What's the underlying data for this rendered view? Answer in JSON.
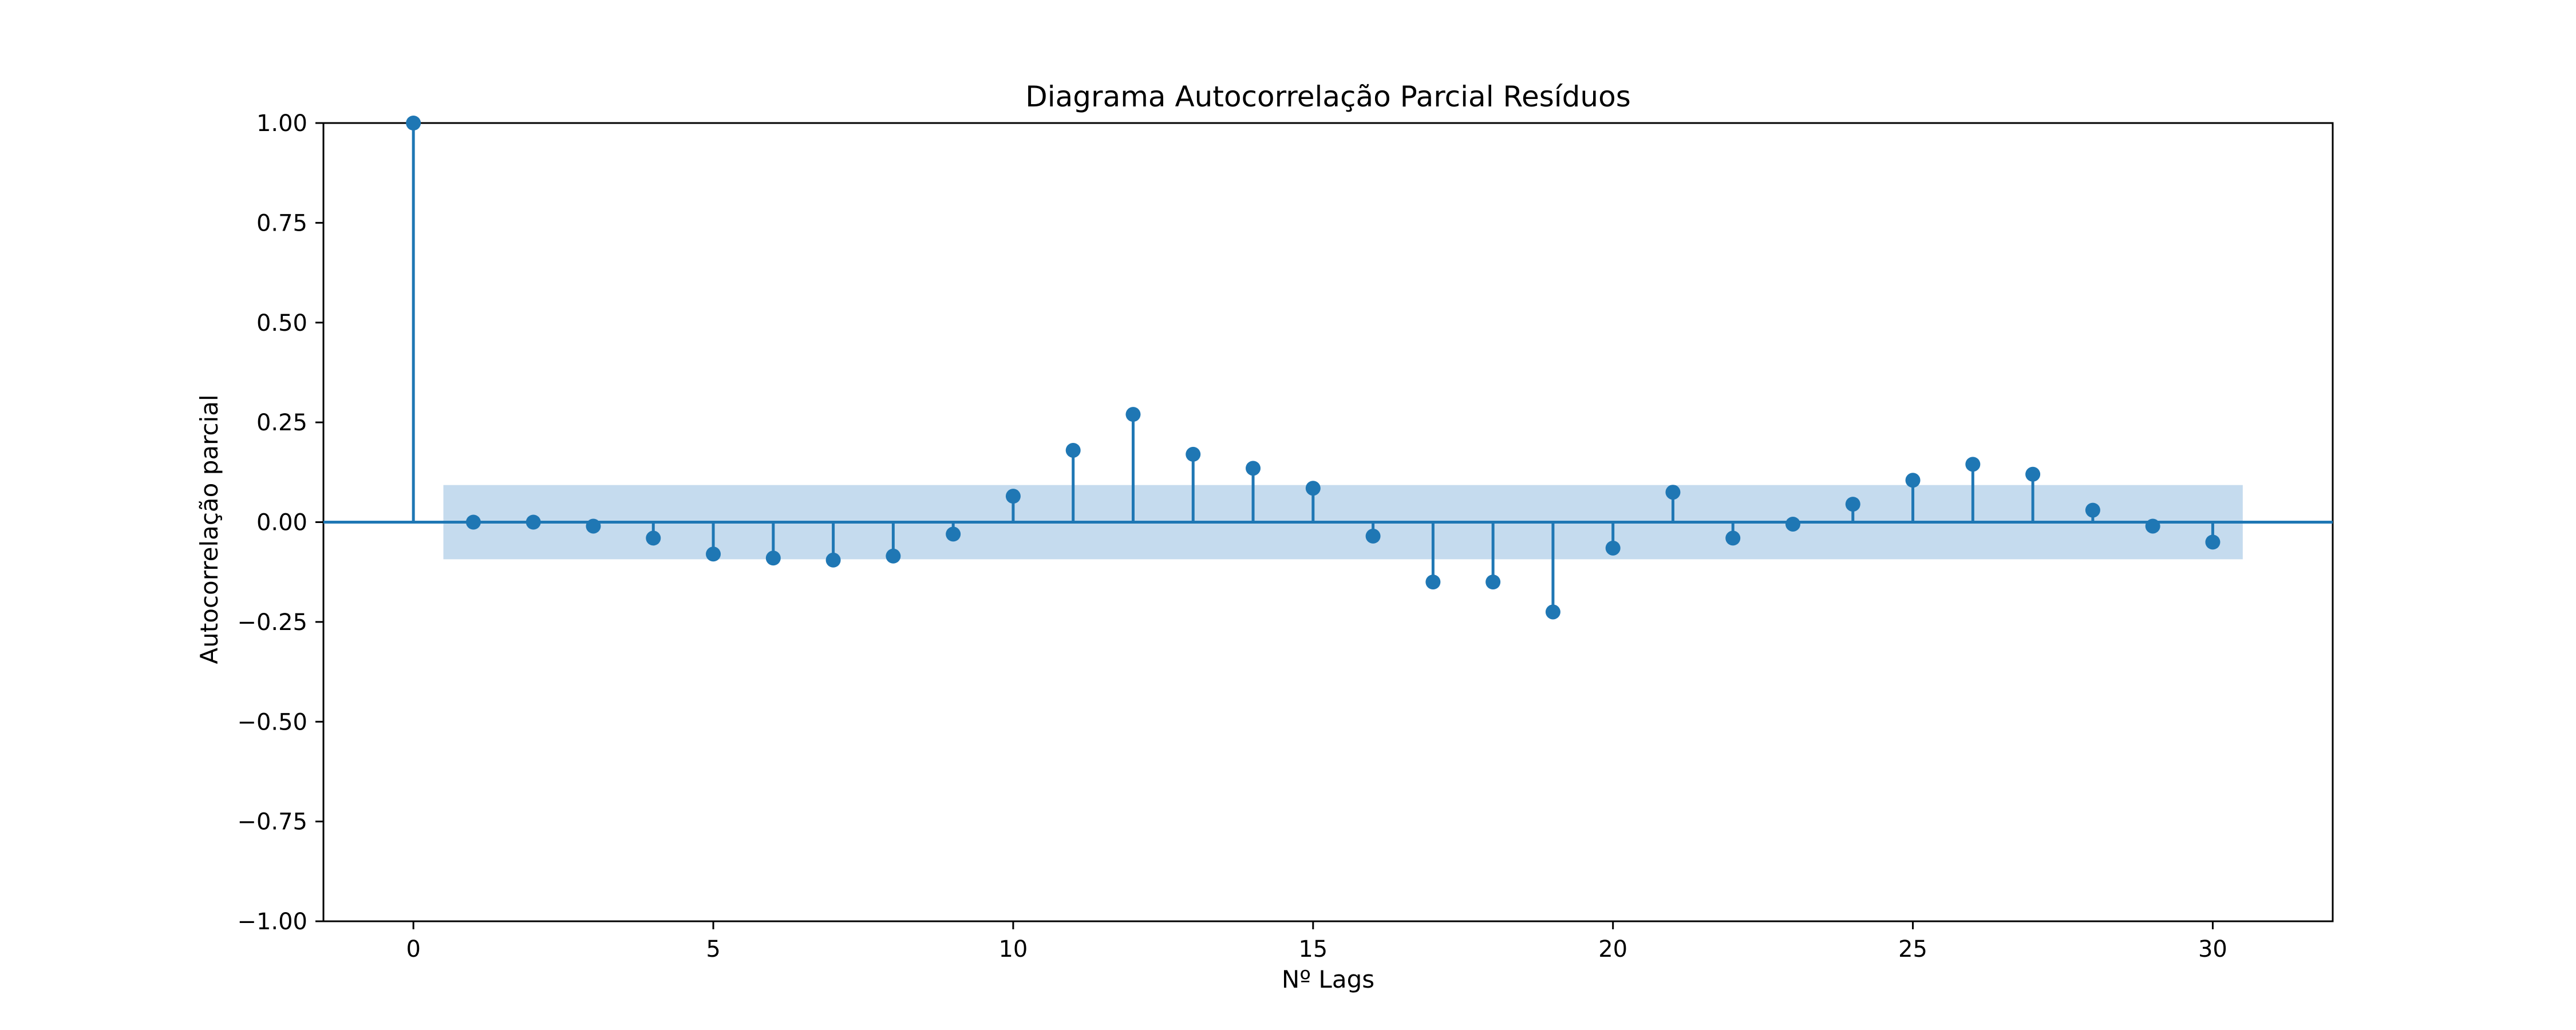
{
  "chart_data": {
    "type": "scatter",
    "subtype": "partial-autocorrelation-stem",
    "title": "Diagrama Autocorrelação Parcial Resíduos",
    "xlabel": "Nº Lags",
    "ylabel": "Autocorrelação parcial",
    "xlim": [
      -1.5,
      32
    ],
    "ylim": [
      -1.0,
      1.0
    ],
    "xticks": [
      "0",
      "5",
      "10",
      "15",
      "20",
      "25",
      "30"
    ],
    "yticks": [
      "1.00",
      "0.75",
      "0.50",
      "0.25",
      "0.00",
      "−0.25",
      "−0.50",
      "−0.75",
      "−1.00"
    ],
    "grid": false,
    "confidence_band": {
      "lower": -0.093,
      "upper": 0.093,
      "x_start": 0.5,
      "x_end": 30.5
    },
    "lags": [
      0,
      1,
      2,
      3,
      4,
      5,
      6,
      7,
      8,
      9,
      10,
      11,
      12,
      13,
      14,
      15,
      16,
      17,
      18,
      19,
      20,
      21,
      22,
      23,
      24,
      25,
      26,
      27,
      28,
      29,
      30
    ],
    "values": [
      1.0,
      0.0,
      0.0,
      -0.01,
      -0.04,
      -0.08,
      -0.09,
      -0.095,
      -0.085,
      -0.03,
      0.065,
      0.18,
      0.27,
      0.17,
      0.135,
      0.085,
      -0.035,
      -0.15,
      -0.15,
      -0.225,
      -0.065,
      0.075,
      -0.04,
      -0.005,
      0.045,
      0.105,
      0.145,
      0.12,
      0.03,
      -0.01,
      -0.05
    ],
    "colors": {
      "series": "#1f77b4",
      "band": "#c5dbee",
      "axes": "#000000"
    }
  }
}
